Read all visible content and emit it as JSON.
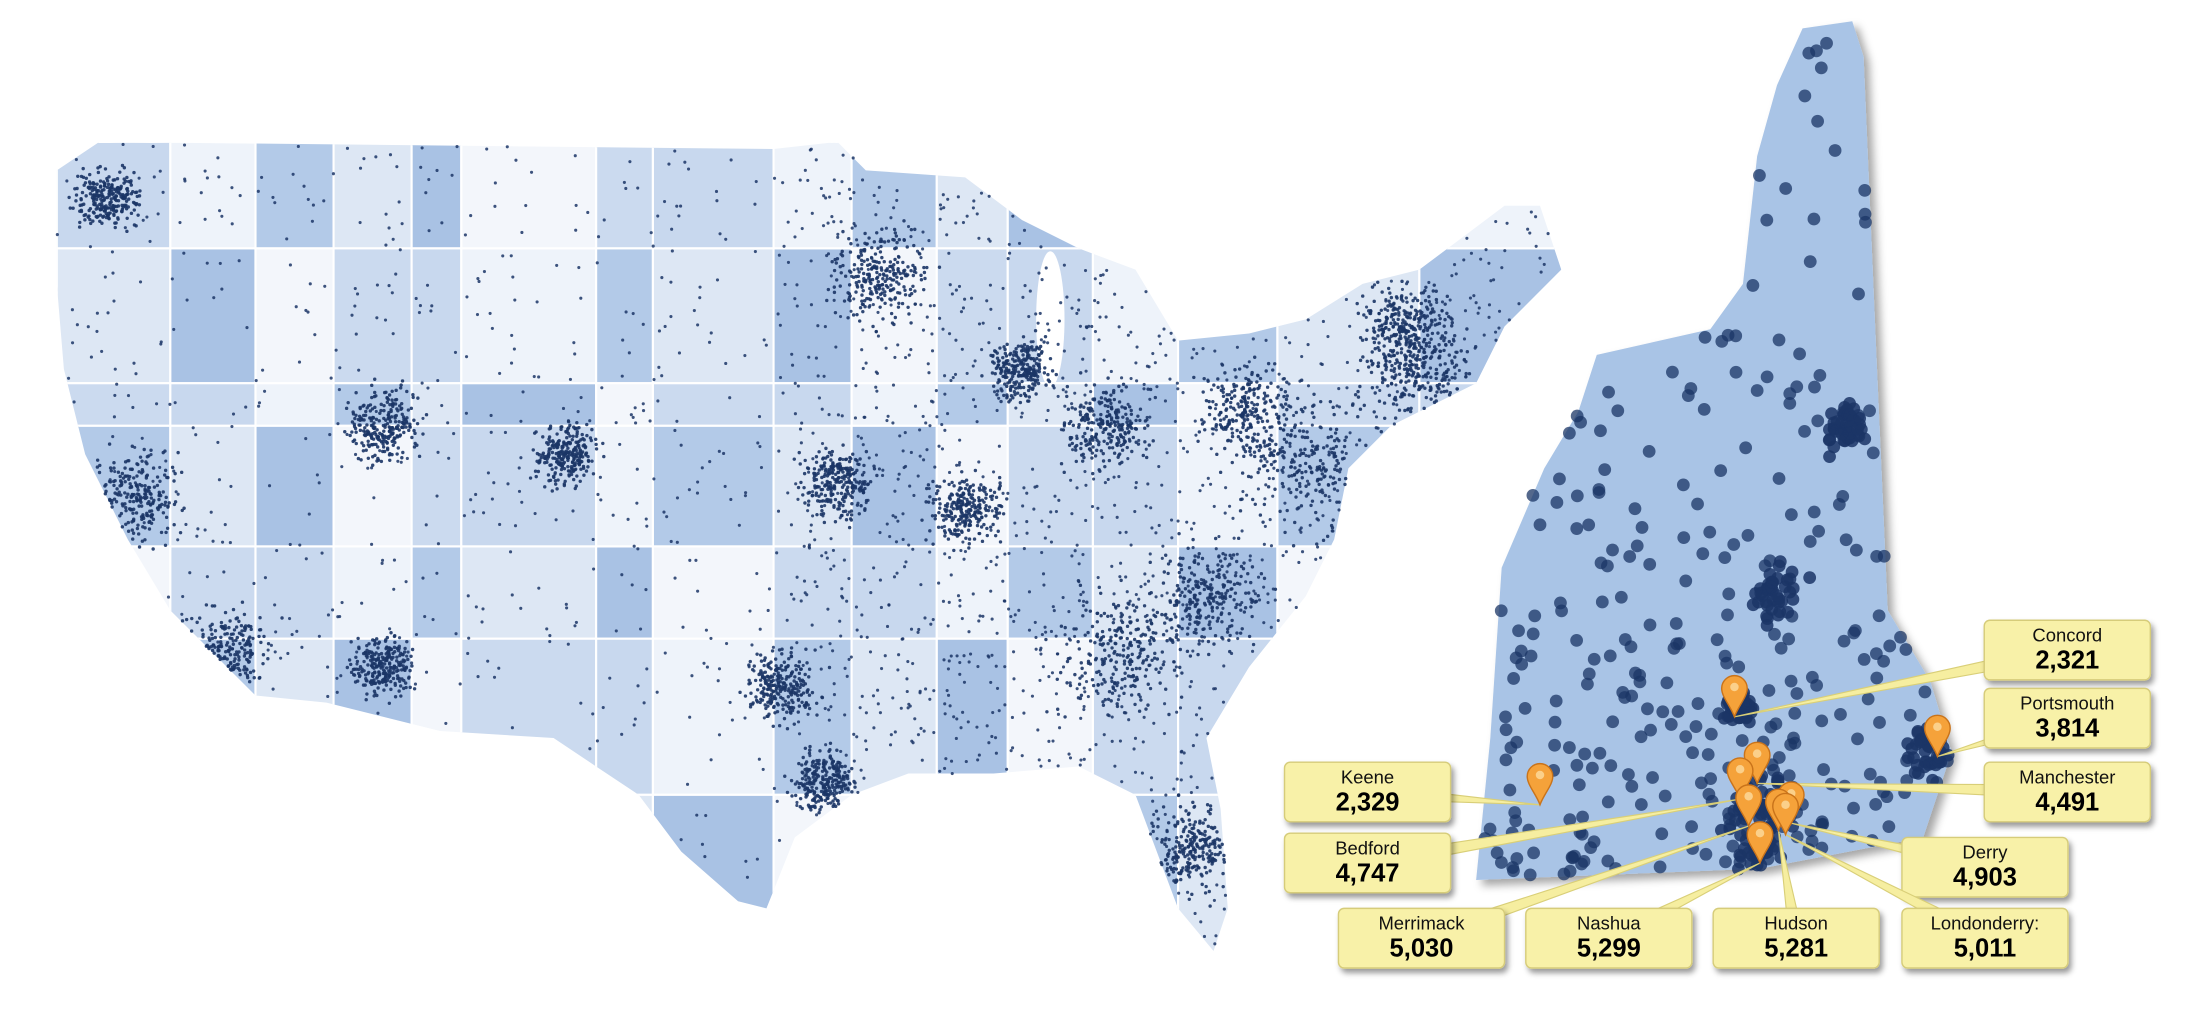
{
  "callouts": [
    {
      "name": "Concord",
      "value": "2,321"
    },
    {
      "name": "Portsmouth",
      "value": "3,814"
    },
    {
      "name": "Manchester",
      "value": "4,491"
    },
    {
      "name": "Keene",
      "value": "2,329"
    },
    {
      "name": "Bedford",
      "value": "4,747"
    },
    {
      "name": "Derry",
      "value": "4,903"
    },
    {
      "name": "Merrimack",
      "value": "5,030"
    },
    {
      "name": "Nashua",
      "value": "5,299"
    },
    {
      "name": "Hudson",
      "value": "5,281"
    },
    {
      "name": "Londonderry:",
      "value": "5,011"
    }
  ]
}
